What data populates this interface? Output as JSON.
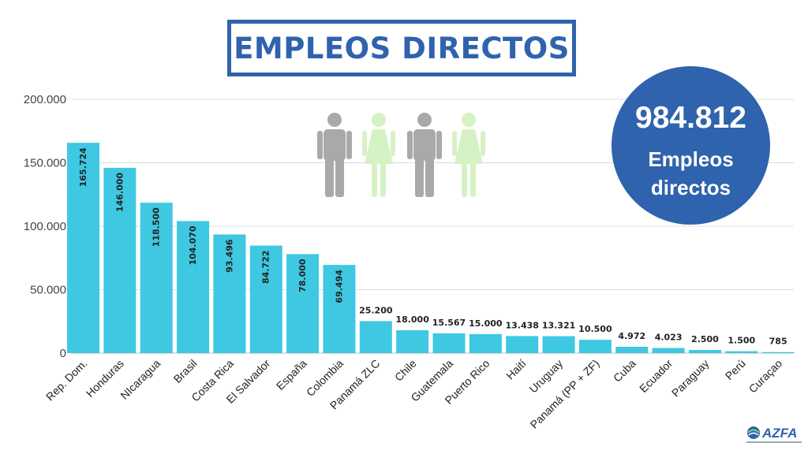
{
  "title": "EMPLEOS DIRECTOS",
  "total": {
    "value": "984.812",
    "label": "Empleos directos",
    "color": "#2f63ad"
  },
  "colors": {
    "bar": "#3ec8e2",
    "title": "#2f63ad",
    "man": "#a9a9a9",
    "woman": "#d6f2c4"
  },
  "icons": [
    "man-icon",
    "woman-icon",
    "man-icon",
    "woman-icon"
  ],
  "logo": {
    "text": "AZFA",
    "icon": "globe-icon"
  },
  "chart_data": {
    "type": "bar",
    "title": "EMPLEOS DIRECTOS",
    "xlabel": "",
    "ylabel": "",
    "ylim": [
      0,
      200000
    ],
    "yticks": [
      0,
      50000,
      100000,
      150000,
      200000
    ],
    "ytick_labels": [
      "0",
      "50.000",
      "100.000",
      "150.000",
      "200.000"
    ],
    "grid": true,
    "categories": [
      "Rep. Dom.",
      "Honduras",
      "NIcaragua",
      "Brasil",
      "Costa Rica",
      "El Salvador",
      "España",
      "Colombia",
      "Panamá ZLC",
      "Chile",
      "Guatemala",
      "Puerto Rico",
      "Haití",
      "Uruguay",
      "Panamá (PP + ZF)",
      "Cuba",
      "Ecuador",
      "Paraguay",
      "Perú",
      "Curaçao"
    ],
    "values": [
      165724,
      146000,
      118500,
      104070,
      93496,
      84722,
      78000,
      69494,
      25200,
      18000,
      15567,
      15000,
      13438,
      13321,
      10500,
      4972,
      4023,
      2500,
      1500,
      785
    ],
    "value_labels": [
      "165.724",
      "146.000",
      "118.500",
      "104.070",
      "93.496",
      "84.722",
      "78.000",
      "69.494",
      "25.200",
      "18.000",
      "15.567",
      "15.000",
      "13.438",
      "13.321",
      "10.500",
      "4.972",
      "4.023",
      "2.500",
      "1.500",
      "785"
    ]
  }
}
